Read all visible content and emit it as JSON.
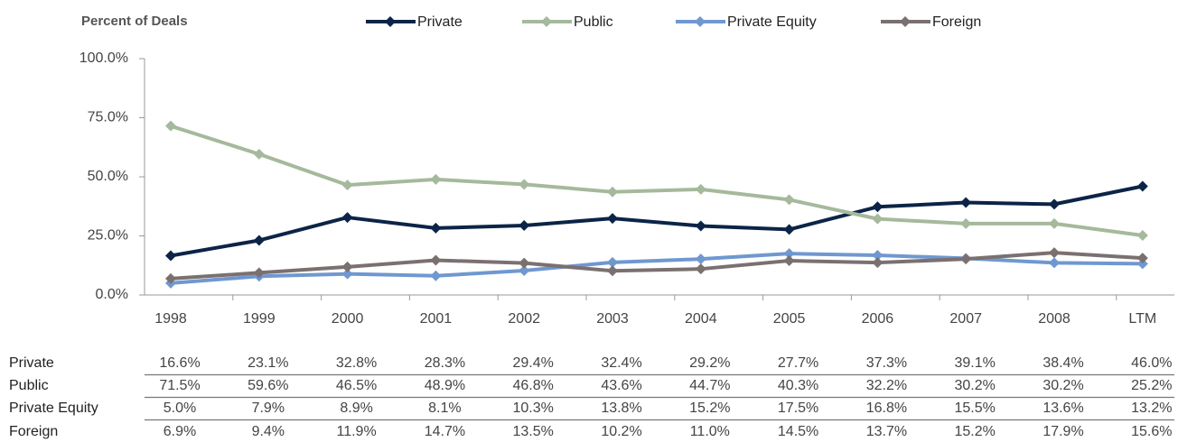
{
  "chart_data": {
    "type": "line",
    "ylabel": "Percent of Deals",
    "categories": [
      "1998",
      "1999",
      "2000",
      "2001",
      "2002",
      "2003",
      "2004",
      "2005",
      "2006",
      "2007",
      "2008",
      "LTM"
    ],
    "ylim": [
      0,
      100
    ],
    "yticks": [
      {
        "value": 0,
        "label": "0.0%"
      },
      {
        "value": 25,
        "label": "25.0%"
      },
      {
        "value": 50,
        "label": "50.0%"
      },
      {
        "value": 75,
        "label": "75.0%"
      },
      {
        "value": 100,
        "label": "100.0%"
      }
    ],
    "grid": false,
    "legend": "top",
    "series": [
      {
        "name": "Private",
        "color": "#0b2447",
        "values": [
          16.6,
          23.1,
          32.8,
          28.3,
          29.4,
          32.4,
          29.2,
          27.7,
          37.3,
          39.1,
          38.4,
          46.0
        ],
        "value_labels": [
          "16.6%",
          "23.1%",
          "32.8%",
          "28.3%",
          "29.4%",
          "32.4%",
          "29.2%",
          "27.7%",
          "37.3%",
          "39.1%",
          "38.4%",
          "46.0%"
        ]
      },
      {
        "name": "Public",
        "color": "#a5b99c",
        "values": [
          71.5,
          59.6,
          46.5,
          48.9,
          46.8,
          43.6,
          44.7,
          40.3,
          32.2,
          30.2,
          30.2,
          25.2
        ],
        "value_labels": [
          "71.5%",
          "59.6%",
          "46.5%",
          "48.9%",
          "46.8%",
          "43.6%",
          "44.7%",
          "40.3%",
          "32.2%",
          "30.2%",
          "30.2%",
          "25.2%"
        ]
      },
      {
        "name": "Private Equity",
        "color": "#6f98d0",
        "values": [
          5.0,
          7.9,
          8.9,
          8.1,
          10.3,
          13.8,
          15.2,
          17.5,
          16.8,
          15.5,
          13.6,
          13.2
        ],
        "value_labels": [
          "5.0%",
          "7.9%",
          "8.9%",
          "8.1%",
          "10.3%",
          "13.8%",
          "15.2%",
          "17.5%",
          "16.8%",
          "15.5%",
          "13.6%",
          "13.2%"
        ]
      },
      {
        "name": "Foreign",
        "color": "#7b7070",
        "values": [
          6.9,
          9.4,
          11.9,
          14.7,
          13.5,
          10.2,
          11.0,
          14.5,
          13.7,
          15.2,
          17.9,
          15.6
        ],
        "value_labels": [
          "6.9%",
          "9.4%",
          "11.9%",
          "14.7%",
          "13.5%",
          "10.2%",
          "11.0%",
          "14.5%",
          "13.7%",
          "15.2%",
          "17.9%",
          "15.6%"
        ]
      }
    ]
  }
}
